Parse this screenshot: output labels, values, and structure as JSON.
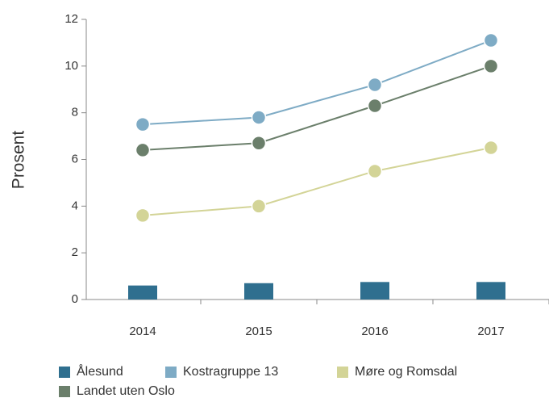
{
  "chart_data": {
    "type": "combo",
    "y_label": "Prosent",
    "categories": [
      "2014",
      "2015",
      "2016",
      "2017"
    ],
    "ylim": [
      0,
      12
    ],
    "yticks": [
      0,
      2,
      4,
      6,
      8,
      10,
      12
    ],
    "series": [
      {
        "name": "Ålesund",
        "type": "bar",
        "color": "#2f6f8f",
        "values": [
          0.6,
          0.7,
          0.75,
          0.75
        ]
      },
      {
        "name": "Kostragruppe 13",
        "type": "line",
        "color": "#7eabc5",
        "values": [
          7.5,
          7.8,
          9.2,
          11.1
        ]
      },
      {
        "name": "Møre og Romsdal",
        "type": "line",
        "color": "#d3d497",
        "values": [
          3.6,
          4.0,
          5.5,
          6.5
        ]
      },
      {
        "name": "Landet uten Oslo",
        "type": "line",
        "color": "#6b7f6b",
        "values": [
          6.4,
          6.7,
          8.3,
          10.0
        ]
      }
    ]
  }
}
